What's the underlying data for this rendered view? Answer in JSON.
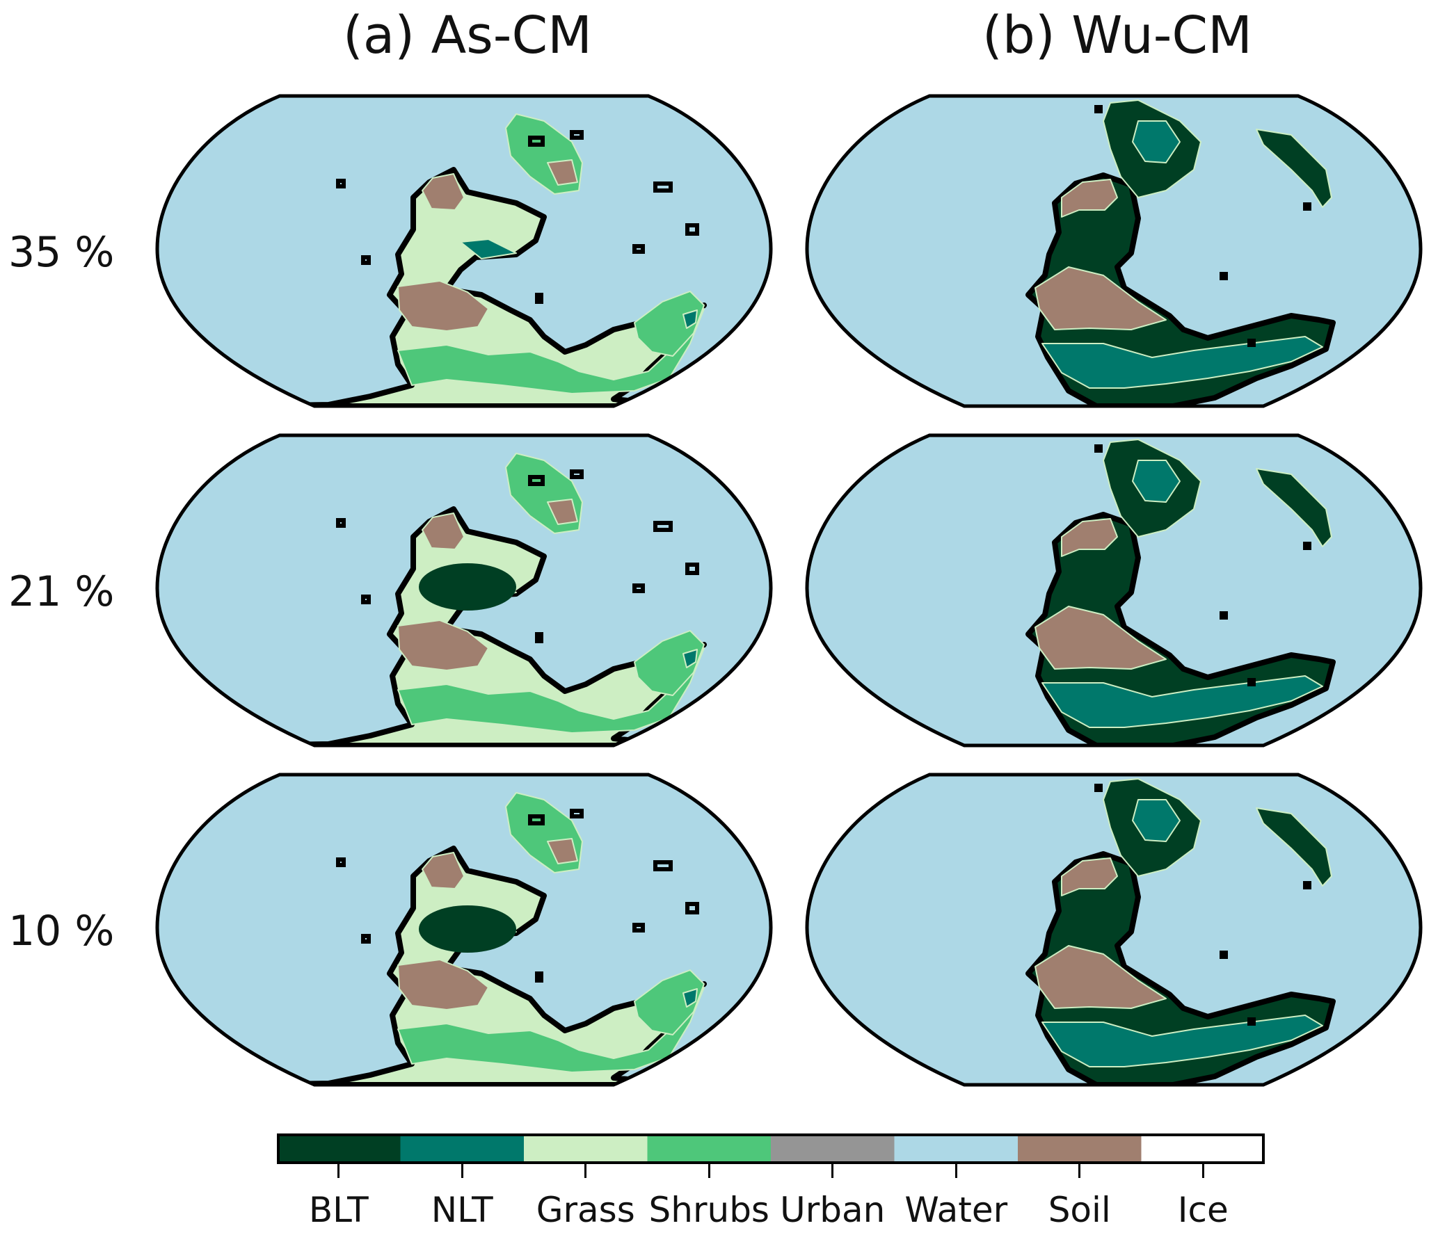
{
  "columns": [
    {
      "title": "(a) As-CM"
    },
    {
      "title": "(b) Wu-CM"
    }
  ],
  "rows": [
    {
      "label": "35 %"
    },
    {
      "label": "21 %"
    },
    {
      "label": "10 %"
    }
  ],
  "colors": {
    "BLT": "#003f23",
    "NLT": "#00786b",
    "Grass": "#cdeec3",
    "Shrubs": "#4ec77a",
    "Urban": "#959595",
    "Water": "#add8e6",
    "Soil": "#a07f6f",
    "Ice": "#ffffff"
  },
  "legend": {
    "categories": [
      "BLT",
      "NLT",
      "Grass",
      "Shrubs",
      "Urban",
      "Water",
      "Soil",
      "Ice"
    ]
  }
}
